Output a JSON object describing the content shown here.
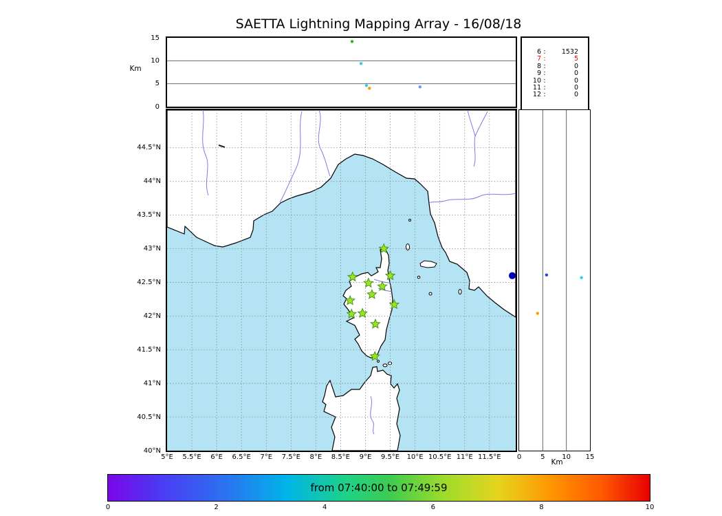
{
  "title": "SAETTA Lightning Mapping Array - 16/08/18",
  "colors": {
    "sea": "#b4e4f4",
    "land": "#ffffff",
    "coast": "#000000",
    "river": "#7d7de0",
    "grid": "#888888",
    "lake": "#222233",
    "station_fill": "#9ae520",
    "station_edge": "#3f8f12"
  },
  "chart_data": {
    "type": "scatter",
    "title": "SAETTA Lightning Mapping Array - 16/08/18",
    "panels": {
      "altitude_lon": {
        "ylabel": "Km",
        "yticks": [
          15,
          10,
          5,
          0
        ],
        "ylim": [
          0,
          15
        ],
        "xlim": [
          5,
          12.03
        ],
        "gridlines_km": [
          5,
          10
        ],
        "points": [
          {
            "lon": 8.73,
            "alt_km": 14.2,
            "color": "#22bb22"
          },
          {
            "lon": 8.91,
            "alt_km": 9.4,
            "color": "#33ccee"
          },
          {
            "lon": 9.02,
            "alt_km": 4.6,
            "color": "#33ccee"
          },
          {
            "lon": 9.08,
            "alt_km": 4.0,
            "color": "#ff9900"
          },
          {
            "lon": 10.1,
            "alt_km": 4.3,
            "color": "#6699ff"
          }
        ]
      },
      "station_counts": {
        "rows": [
          {
            "label": "6",
            "value": "1532",
            "color": "#000000"
          },
          {
            "label": "7",
            "value": "5",
            "color": "#ee0000"
          },
          {
            "label": "8",
            "value": "0",
            "color": "#000000"
          },
          {
            "label": "9",
            "value": "0",
            "color": "#000000"
          },
          {
            "label": "10",
            "value": "0",
            "color": "#000000"
          },
          {
            "label": "11",
            "value": "0",
            "color": "#000000"
          },
          {
            "label": "12",
            "value": "0",
            "color": "#000000"
          }
        ]
      },
      "map": {
        "lon_range": [
          5,
          12.03
        ],
        "lat_range": [
          40,
          45.06
        ],
        "lat_ticks": [
          {
            "v": 44.5,
            "label": "44.5°N"
          },
          {
            "v": 44,
            "label": "44°N"
          },
          {
            "v": 43.5,
            "label": "43.5°N"
          },
          {
            "v": 43,
            "label": "43°N"
          },
          {
            "v": 42.5,
            "label": "42.5°N"
          },
          {
            "v": 42,
            "label": "42°N"
          },
          {
            "v": 41.5,
            "label": "41.5°N"
          },
          {
            "v": 41,
            "label": "41°N"
          },
          {
            "v": 40.5,
            "label": "40.5°N"
          },
          {
            "v": 40,
            "label": "40°N"
          }
        ],
        "lon_ticks": [
          {
            "v": 5,
            "label": "5°E"
          },
          {
            "v": 5.5,
            "label": "5.5°E"
          },
          {
            "v": 6,
            "label": "6°E"
          },
          {
            "v": 6.5,
            "label": "6.5°E"
          },
          {
            "v": 7,
            "label": "7°E"
          },
          {
            "v": 7.5,
            "label": "7.5°E"
          },
          {
            "v": 8,
            "label": "8°E"
          },
          {
            "v": 8.5,
            "label": "8.5°E"
          },
          {
            "v": 9,
            "label": "9°E"
          },
          {
            "v": 9.5,
            "label": "9.5°E"
          },
          {
            "v": 10,
            "label": "10°E"
          },
          {
            "v": 10.5,
            "label": "10.5°E"
          },
          {
            "v": 11,
            "label": "11°E"
          },
          {
            "v": 11.5,
            "label": "11.5°E"
          }
        ],
        "stations_lonlat": [
          [
            9.37,
            43.0
          ],
          [
            8.74,
            42.58
          ],
          [
            9.06,
            42.49
          ],
          [
            9.34,
            42.44
          ],
          [
            9.5,
            42.6
          ],
          [
            9.13,
            42.32
          ],
          [
            8.69,
            42.23
          ],
          [
            9.58,
            42.17
          ],
          [
            8.72,
            42.03
          ],
          [
            8.94,
            42.04
          ],
          [
            9.2,
            41.88
          ],
          [
            9.19,
            41.4
          ]
        ],
        "sources": [
          {
            "lon": 11.96,
            "lat": 42.6,
            "color": "#0000bb",
            "r": 5
          }
        ]
      },
      "altitude_lat": {
        "xlabel": "Km",
        "xticks": [
          0,
          5,
          10,
          15
        ],
        "xlim": [
          0,
          15
        ],
        "gridlines_km": [
          5,
          10
        ],
        "points": [
          {
            "lat": 42.61,
            "alt_km": 5.8,
            "color": "#2244ee"
          },
          {
            "lat": 42.57,
            "alt_km": 13.2,
            "color": "#33ccee"
          },
          {
            "lat": 42.04,
            "alt_km": 3.9,
            "color": "#ff9900"
          }
        ]
      },
      "colorbar": {
        "label": "from 07:40:00 to 07:49:59",
        "ticks": [
          0,
          2,
          4,
          6,
          8,
          10
        ],
        "range": [
          0,
          10
        ],
        "gradient": [
          {
            "p": 0,
            "c": "#7a06e8"
          },
          {
            "p": 10,
            "c": "#4a3cf4"
          },
          {
            "p": 22,
            "c": "#2a74f0"
          },
          {
            "p": 33,
            "c": "#00b4e8"
          },
          {
            "p": 44,
            "c": "#1ed288"
          },
          {
            "p": 52,
            "c": "#3ecc50"
          },
          {
            "p": 62,
            "c": "#9cdc2a"
          },
          {
            "p": 72,
            "c": "#e6d41e"
          },
          {
            "p": 82,
            "c": "#ff9400"
          },
          {
            "p": 91,
            "c": "#ff5a00"
          },
          {
            "p": 100,
            "c": "#e80000"
          }
        ]
      }
    }
  }
}
